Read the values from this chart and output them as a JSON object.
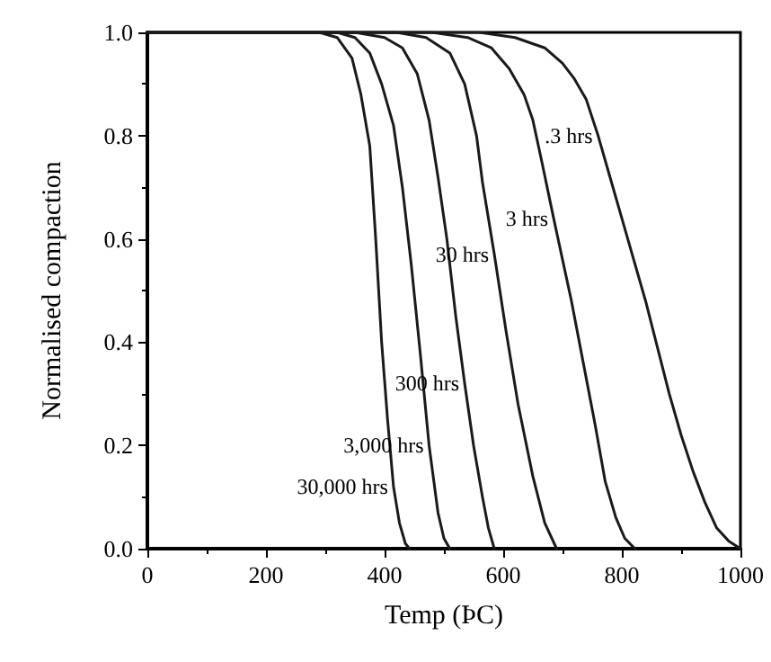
{
  "chart_data": {
    "type": "line",
    "xlabel": "Temp (ÞC)",
    "ylabel": "Normalised compaction",
    "xlim": [
      0,
      1000
    ],
    "xticks": [
      0,
      200,
      400,
      600,
      800,
      1000
    ],
    "ylim": [
      0,
      1
    ],
    "yticks": [
      {
        "value": 0,
        "label": "0.0"
      },
      {
        "value": 0.2,
        "label": "0.2"
      },
      {
        "value": 0.4,
        "label": "0.4"
      },
      {
        "value": 0.6,
        "label": "0.6"
      },
      {
        "value": 0.8,
        "label": "0.8"
      },
      {
        "value": 1,
        "label": "1.0"
      }
    ],
    "grid": false,
    "legend": false,
    "marker": "none",
    "line_style": "solid",
    "series": [
      {
        "name": ".3 hrs",
        "color": "#1a1a1a",
        "x": [
          0,
          560,
          620,
          670,
          700,
          720,
          740,
          760,
          780,
          800,
          820,
          840,
          860,
          880,
          900,
          920,
          940,
          960,
          980,
          1000
        ],
        "values": [
          1,
          1,
          0.99,
          0.97,
          0.94,
          0.91,
          0.87,
          0.8,
          0.72,
          0.64,
          0.56,
          0.48,
          0.39,
          0.3,
          0.22,
          0.15,
          0.09,
          0.04,
          0.015,
          0
        ]
      },
      {
        "name": "3 hrs",
        "color": "#1a1a1a",
        "x": [
          0,
          480,
          540,
          580,
          610,
          635,
          650,
          665,
          685,
          700,
          715,
          735,
          755,
          772,
          790,
          805,
          822
        ],
        "values": [
          1,
          1,
          0.99,
          0.97,
          0.93,
          0.88,
          0.83,
          0.75,
          0.64,
          0.56,
          0.48,
          0.36,
          0.24,
          0.13,
          0.06,
          0.02,
          0
        ]
      },
      {
        "name": "30 hrs",
        "color": "#1a1a1a",
        "x": [
          0,
          420,
          470,
          510,
          535,
          555,
          565,
          585,
          605,
          625,
          650,
          670,
          690
        ],
        "values": [
          1,
          1,
          0.99,
          0.96,
          0.9,
          0.8,
          0.71,
          0.57,
          0.42,
          0.28,
          0.14,
          0.05,
          0
        ]
      },
      {
        "name": "300 hrs",
        "color": "#1a1a1a",
        "x": [
          0,
          350,
          400,
          430,
          455,
          475,
          490,
          505,
          520,
          535,
          550,
          565,
          575,
          585
        ],
        "values": [
          1,
          1,
          0.99,
          0.97,
          0.92,
          0.83,
          0.72,
          0.6,
          0.45,
          0.32,
          0.2,
          0.1,
          0.04,
          0
        ]
      },
      {
        "name": "3,000 hrs",
        "color": "#1a1a1a",
        "x": [
          0,
          320,
          350,
          375,
          395,
          415,
          430,
          445,
          460,
          475,
          490,
          500,
          510
        ],
        "values": [
          1,
          1,
          0.99,
          0.96,
          0.9,
          0.82,
          0.7,
          0.55,
          0.38,
          0.2,
          0.07,
          0.02,
          0
        ]
      },
      {
        "name": "30,000 hrs",
        "color": "#1a1a1a",
        "x": [
          0,
          290,
          320,
          345,
          360,
          375,
          385,
          395,
          405,
          415,
          425,
          435,
          442
        ],
        "values": [
          1,
          1,
          0.99,
          0.95,
          0.88,
          0.78,
          0.6,
          0.4,
          0.25,
          0.12,
          0.05,
          0.01,
          0
        ]
      }
    ]
  }
}
